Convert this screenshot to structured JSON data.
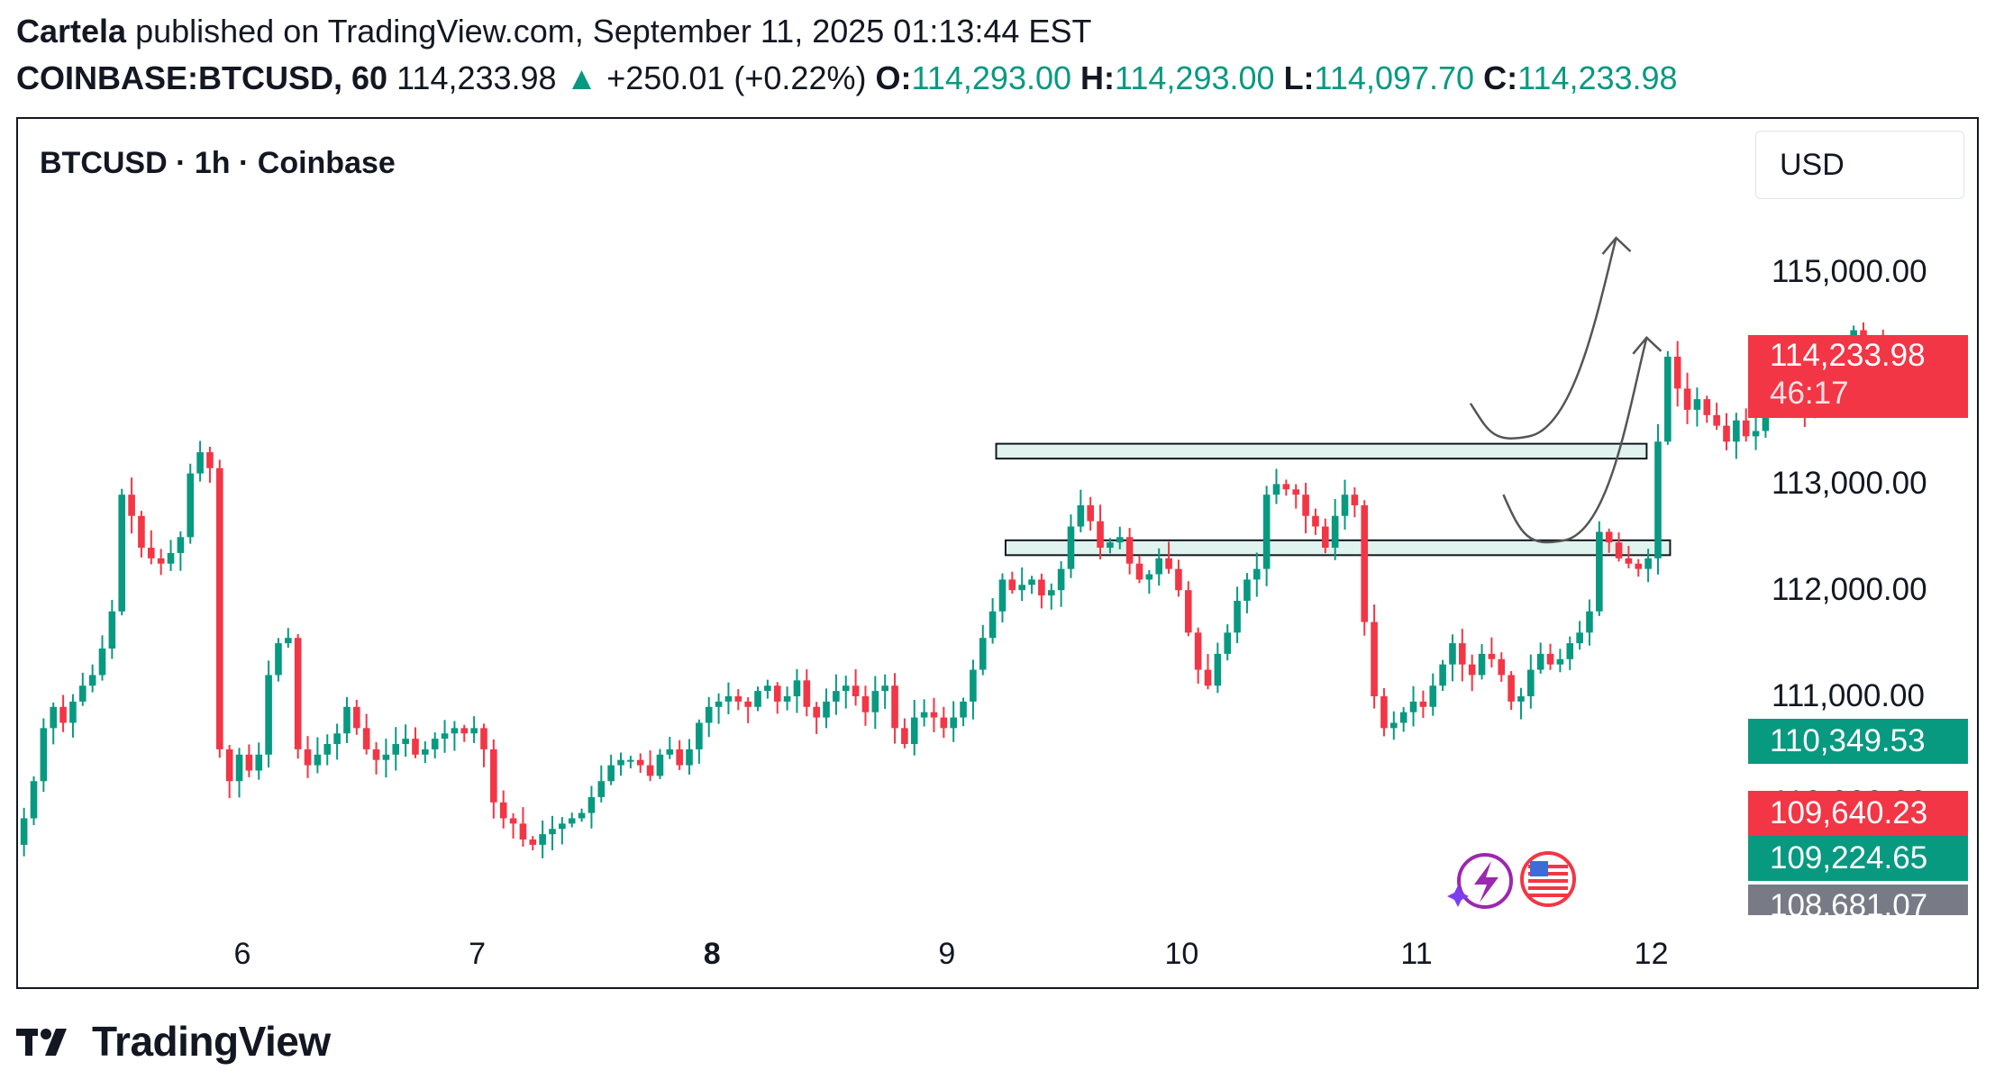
{
  "header": {
    "author": "Cartela",
    "published": "published on TradingView.com, September 11, 2025 01:13:44 EST",
    "symbol": "COINBASE:BTCUSD, 60",
    "last": "114,233.98",
    "change": "+250.01 (+0.22%)",
    "o_label": "O:",
    "o_value": "114,293.00",
    "h_label": "H:",
    "h_value": "114,293.00",
    "l_label": "L:",
    "l_value": "114,097.70",
    "c_label": "C:",
    "c_value": "114,233.98"
  },
  "legend_title": "BTCUSD · 1h · Coinbase",
  "currency_label": "USD",
  "brand_name": "TradingView",
  "colors": {
    "up": "#089981",
    "down": "#f23645",
    "zone_fill": "#e0f3ee",
    "tag_gray": "#787b86"
  },
  "icons": [
    "bolt-icon",
    "us-flag-icon",
    "tradingview-logo-icon",
    "up-arrow-icon"
  ],
  "chart_data": {
    "type": "candlestick",
    "timeframe": "1h",
    "y_ticks": [
      "115,000.00",
      "113,000.00",
      "112,000.00",
      "111,000.00",
      "110,000.00"
    ],
    "y_tick_values": [
      115000,
      113000,
      112000,
      111000,
      110000
    ],
    "ylim": [
      108400,
      116200
    ],
    "x_ticks": [
      {
        "label": "6",
        "bold": false,
        "day": 6
      },
      {
        "label": "7",
        "bold": false,
        "day": 7
      },
      {
        "label": "8",
        "bold": true,
        "day": 8
      },
      {
        "label": "9",
        "bold": false,
        "day": 9
      },
      {
        "label": "10",
        "bold": false,
        "day": 10
      },
      {
        "label": "11",
        "bold": false,
        "day": 11
      },
      {
        "label": "12",
        "bold": false,
        "day": 12
      }
    ],
    "price_tags": [
      {
        "label": "114,233.98",
        "sub": "46:17",
        "value": 114233.98,
        "color": "#f23645"
      },
      {
        "label": "110,349.53",
        "value": 110349.53,
        "color": "#089981"
      },
      {
        "label": "109,640.23",
        "value": 109640.23,
        "color": "#f23645"
      },
      {
        "label": "109,224.65",
        "value": 109224.65,
        "color": "#089981"
      },
      {
        "label": "108,681.07",
        "value": 108681.07,
        "color": "#787b86"
      }
    ],
    "zones": [
      {
        "from_day": 9.21,
        "to_day": 11.98,
        "low": 113240,
        "high": 113380
      },
      {
        "from_day": 9.25,
        "to_day": 12.08,
        "low": 112330,
        "high": 112470
      }
    ],
    "projections": [
      {
        "start": [
          11.23,
          113760
        ],
        "bottom": [
          11.48,
          113450
        ],
        "end": [
          11.85,
          115320
        ]
      },
      {
        "start": [
          11.37,
          112900
        ],
        "bottom": [
          11.63,
          112470
        ],
        "end": [
          11.98,
          114380
        ]
      }
    ],
    "closes": [
      109850,
      110200,
      110700,
      110900,
      110750,
      110950,
      111100,
      111200,
      111450,
      111800,
      112900,
      112700,
      112400,
      112300,
      112250,
      112350,
      112500,
      113100,
      113300,
      113150,
      110500,
      110200,
      110450,
      110300,
      110450,
      111200,
      111500,
      111550,
      110500,
      110350,
      110450,
      110550,
      110650,
      110900,
      110700,
      110500,
      110400,
      110450,
      110550,
      110600,
      110450,
      110500,
      110600,
      110650,
      110700,
      110650,
      110700,
      110500,
      110000,
      109850,
      109800,
      109650,
      109600,
      109700,
      109750,
      109800,
      109850,
      109900,
      110050,
      110200,
      110350,
      110400,
      110400,
      110350,
      110250,
      110450,
      110500,
      110350,
      110500,
      110750,
      110900,
      110950,
      111000,
      110950,
      110900,
      111050,
      111100,
      110950,
      111000,
      111150,
      110900,
      110800,
      110950,
      111050,
      111100,
      111000,
      110850,
      111050,
      111100,
      110700,
      110550,
      110800,
      110850,
      110800,
      110700,
      110800,
      110950,
      111250,
      111550,
      111800,
      112100,
      112000,
      112050,
      112100,
      111950,
      112000,
      112200,
      112600,
      112800,
      112650,
      112400,
      112450,
      112500,
      112250,
      112100,
      112150,
      112300,
      112200,
      112000,
      111600,
      111250,
      111100,
      111400,
      111600,
      111900,
      112100,
      112200,
      112900,
      113000,
      112950,
      112900,
      112700,
      112600,
      112400,
      112700,
      112900,
      112800,
      111700,
      111000,
      110700,
      110750,
      110850,
      110950,
      110900,
      111100,
      111300,
      111500,
      111300,
      111200,
      111400,
      111350,
      111200,
      110950,
      111000,
      111250,
      111400,
      111300,
      111350,
      111500,
      111600,
      111800,
      112550,
      112450,
      112300,
      112250,
      112200,
      112300,
      113400,
      114200,
      113900,
      113700,
      113800,
      113650,
      113550,
      113400,
      113600,
      113450,
      113500,
      113700,
      113800,
      113900,
      113750,
      113700,
      113950,
      113850,
      113900,
      113800,
      114450,
      114200,
      114300,
      114234
    ]
  }
}
